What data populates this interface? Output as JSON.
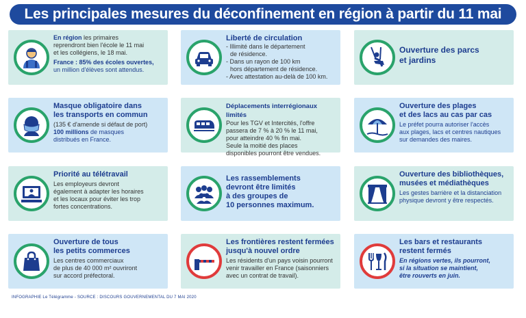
{
  "title": "Les principales mesures du déconfinement en région à partir du 11 mai",
  "cards": {
    "c1": {
      "lead": "En région",
      "text1": " les primaires",
      "line2": "reprendront bien l'école le 11 mai",
      "line3": "et les collégiens, le 18 mai.",
      "stat": "France : 85%  des écoles ouvertes,",
      "stat2": "un million d'élèves sont attendus."
    },
    "c2": {
      "title": "Liberté de circulation",
      "b1": "- Illimité dans le département",
      "b1b": "de résidence.",
      "b2": "- Dans un rayon de 100 km",
      "b2b": "hors département de résidence.",
      "b3": "- Avec attestation au-delà de 100 km."
    },
    "c3": {
      "title": "Ouverture des parcs",
      "title2": "et jardins"
    },
    "c4": {
      "title": "Masque  obligatoire dans",
      "title2": "les transports en commun",
      "note": "(135 € d'amende si défaut de port)",
      "lead": "100 millions",
      "text": " de masques",
      "text2": "distribués en France."
    },
    "c5": {
      "title": "Déplacements interrégionaux limités",
      "l1": "Pour les TGV et Intercités, l'offre",
      "l2": "passera de 7 % à 20 % le 11 mai,",
      "l3": "pour atteindre 40 % fin mai.",
      "l4": "Seule la moitié des places",
      "l5": "disponibles pourront être vendues."
    },
    "c6": {
      "title": "Ouverture des plages",
      "title2": "et des lacs au cas par cas",
      "l1": "Le préfet pourra autoriser l'accès",
      "l2": "aux plages, lacs et centres nautiques",
      "l3": "sur demandes des maires."
    },
    "c7": {
      "title": "Priorité au télétravail",
      "l1": "Les employeurs devront",
      "l2": "également à adapter les horaires",
      "l3": "et les locaux pour éviter les trop",
      "l4": "fortes  concentrations."
    },
    "c8": {
      "l1": "Les rassemblements",
      "l2": "devront être limités",
      "l3": "à des groupes de",
      "l4": "10 personnes maximum."
    },
    "c9": {
      "title": "Ouverture des bibliothèques,",
      "title2": "musées et médiathèques",
      "l1": "Les gestes barrière et la distanciation",
      "l2": "physique devront y être respectés."
    },
    "c10": {
      "title": "Ouverture de tous",
      "title2": "les petits commerces",
      "l1": "Les centres commerciaux",
      "l2": "de plus de 40 000 m² ouvriront",
      "l3": "sur accord préfectoral."
    },
    "c11": {
      "title": "Les frontières restent fermées",
      "title2": "jusqu'à nouvel ordre",
      "l1": "Les résidents d'un pays voisin pourront",
      "l2": "venir travailler en France (saisonniers",
      "l3": "avec un contrat de travail)."
    },
    "c12": {
      "title": "Les bars et restaurants",
      "title2": "restent fermés",
      "l1": "En régions vertes, ils pourront,",
      "l2": "si la situation se maintient,",
      "l3": "être rouverts en juin."
    }
  },
  "footer": "INFOGRAPHIE  Le Télégramme  - SOURCE : DISCOURS GOUVERNEMENTAL  DU 7 MAI 2020",
  "colors": {
    "banner": "#1e4a9e",
    "green_card": "#d4ece9",
    "blue_card": "#cfe6f6",
    "green_ring": "#2aa36b",
    "red_ring": "#e03b3b"
  },
  "icons": {
    "c1": "student-icon",
    "c2": "car-icon",
    "c3": "swing-icon",
    "c4": "mask-icon",
    "c5": "train-icon",
    "c6": "beach-umbrella-icon",
    "c7": "telework-computer-icon",
    "c8": "crowd-icon",
    "c9": "theater-curtain-icon",
    "c10": "shopping-bag-icon",
    "c11": "border-barrier-icon",
    "c12": "restaurant-icon"
  }
}
